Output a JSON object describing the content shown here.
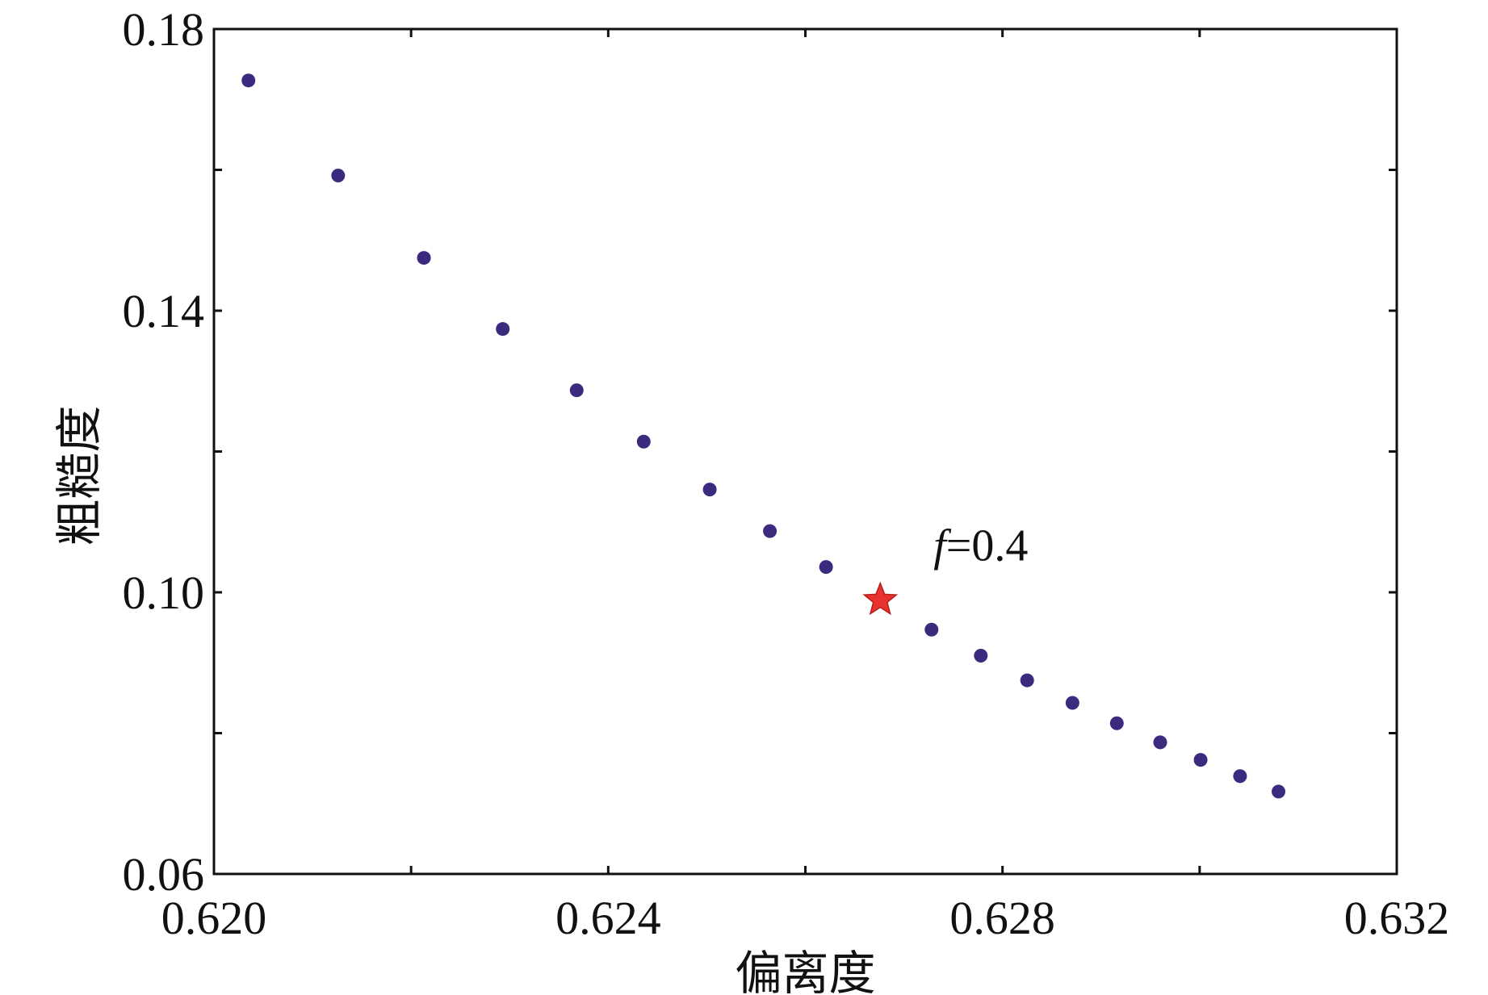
{
  "chart_data": {
    "type": "scatter",
    "title": "",
    "xlabel": "偏离度",
    "ylabel": "粗糙度",
    "xlim": [
      0.62,
      0.632
    ],
    "ylim": [
      0.06,
      0.18
    ],
    "xticks": [
      0.62,
      0.622,
      0.624,
      0.626,
      0.628,
      0.63,
      0.632
    ],
    "yticks": [
      0.06,
      0.08,
      0.1,
      0.12,
      0.14,
      0.16,
      0.18
    ],
    "xtick_labels": [
      "0.620",
      "",
      "0.624",
      "",
      "0.628",
      "",
      "0.632"
    ],
    "ytick_labels": [
      "0.06",
      "",
      "0.10",
      "",
      "0.14",
      "",
      "0.18"
    ],
    "grid": false,
    "series": [
      {
        "marker": "circle",
        "color": "#3b2a7e",
        "points": [
          {
            "x": 0.62035,
            "y": 0.1727
          },
          {
            "x": 0.62126,
            "y": 0.1592
          },
          {
            "x": 0.62213,
            "y": 0.1475
          },
          {
            "x": 0.62293,
            "y": 0.1374
          },
          {
            "x": 0.62368,
            "y": 0.1287
          },
          {
            "x": 0.62436,
            "y": 0.1214
          },
          {
            "x": 0.62503,
            "y": 0.1146
          },
          {
            "x": 0.62564,
            "y": 0.1087
          },
          {
            "x": 0.62621,
            "y": 0.1036
          },
          {
            "x": 0.62728,
            "y": 0.0947
          },
          {
            "x": 0.62778,
            "y": 0.091
          },
          {
            "x": 0.62825,
            "y": 0.0875
          },
          {
            "x": 0.62871,
            "y": 0.0843
          },
          {
            "x": 0.62916,
            "y": 0.0814
          },
          {
            "x": 0.6296,
            "y": 0.0787
          },
          {
            "x": 0.63001,
            "y": 0.0762
          },
          {
            "x": 0.63041,
            "y": 0.0739
          },
          {
            "x": 0.6308,
            "y": 0.0717
          }
        ]
      },
      {
        "marker": "star",
        "color": "#e8322d",
        "points": [
          {
            "x": 0.62676,
            "y": 0.0989
          }
        ]
      }
    ],
    "annotation": {
      "italic": "f",
      "text": "=0.4",
      "x": 0.6273,
      "y": 0.1045
    }
  }
}
